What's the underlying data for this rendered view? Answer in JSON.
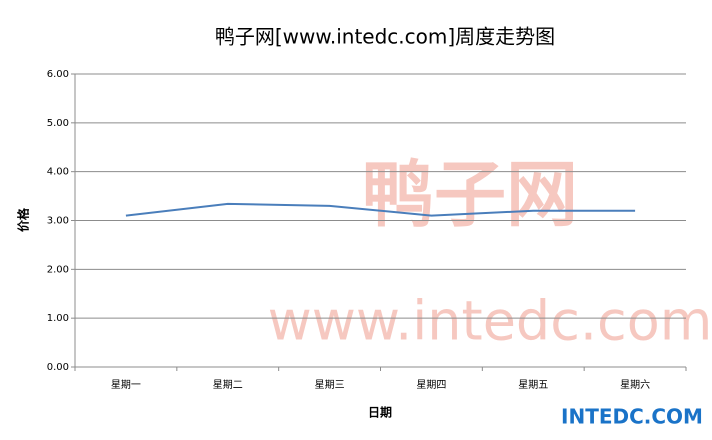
{
  "chart_data": {
    "type": "line",
    "title": "鸭子网[www.intedc.com]周度走势图",
    "x_label": "日期",
    "y_label": "价格",
    "categories": [
      "星期一",
      "星期二",
      "星期三",
      "星期四",
      "星期五",
      "星期六"
    ],
    "series": [
      {
        "name": "价格",
        "color": "#4a7ebb",
        "values": [
          3.1,
          3.34,
          3.3,
          3.1,
          3.2,
          3.2
        ]
      }
    ],
    "ylim": [
      0,
      6
    ],
    "yticks": [
      {
        "value": 0,
        "label": "0.00"
      },
      {
        "value": 1,
        "label": "1.00"
      },
      {
        "value": 2,
        "label": "2.00"
      },
      {
        "value": 3,
        "label": "3.00"
      },
      {
        "value": 4,
        "label": "4.00"
      },
      {
        "value": 5,
        "label": "5.00"
      },
      {
        "value": 6,
        "label": "6.00"
      }
    ],
    "grid": true,
    "watermark_texts": [
      "鸭子网",
      "www.intedc.com"
    ],
    "logo": "INTEDC.COM"
  }
}
